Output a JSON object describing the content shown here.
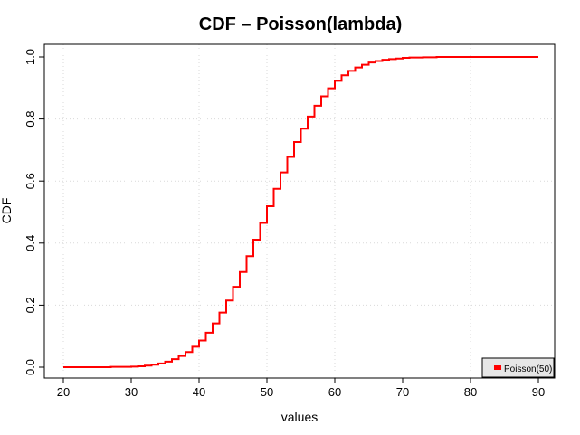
{
  "chart_data": {
    "type": "line",
    "step": true,
    "title": "CDF – Poisson(lambda)",
    "xlabel": "values",
    "ylabel": "CDF",
    "xlim": [
      20,
      90
    ],
    "ylim": [
      0,
      1
    ],
    "x_ticks": [
      20,
      30,
      40,
      50,
      60,
      70,
      80,
      90
    ],
    "x_tick_labels": [
      "20",
      "30",
      "40",
      "50",
      "60",
      "70",
      "80",
      "90"
    ],
    "y_ticks": [
      0,
      0.2,
      0.4,
      0.6,
      0.8,
      1
    ],
    "y_tick_labels": [
      "0.0",
      "0.2",
      "0.4",
      "0.6",
      "0.8",
      "1.0"
    ],
    "grid": true,
    "legend_position": "bottom-right",
    "series": [
      {
        "name": "Poisson(50)",
        "color": "#ff0000",
        "x": [
          20,
          21,
          22,
          23,
          24,
          25,
          26,
          27,
          28,
          29,
          30,
          31,
          32,
          33,
          34,
          35,
          36,
          37,
          38,
          39,
          40,
          41,
          42,
          43,
          44,
          45,
          46,
          47,
          48,
          49,
          50,
          51,
          52,
          53,
          54,
          55,
          56,
          57,
          58,
          59,
          60,
          61,
          62,
          63,
          64,
          65,
          66,
          67,
          68,
          69,
          70,
          71,
          72,
          73,
          74,
          75,
          76,
          77,
          78,
          79,
          80,
          81,
          82,
          83,
          84,
          85,
          86,
          87,
          88,
          89,
          90
        ],
        "y": [
          0,
          0,
          0,
          0,
          0,
          0,
          0,
          0.001,
          0.001,
          0.001,
          0.002,
          0.003,
          0.005,
          0.008,
          0.012,
          0.018,
          0.026,
          0.036,
          0.049,
          0.066,
          0.086,
          0.111,
          0.141,
          0.176,
          0.215,
          0.259,
          0.307,
          0.358,
          0.411,
          0.465,
          0.519,
          0.575,
          0.628,
          0.678,
          0.726,
          0.769,
          0.808,
          0.843,
          0.873,
          0.899,
          0.923,
          0.941,
          0.955,
          0.966,
          0.975,
          0.982,
          0.987,
          0.991,
          0.993,
          0.995,
          0.997,
          0.998,
          0.998,
          0.999,
          0.999,
          1,
          1,
          1,
          1,
          1,
          1,
          1,
          1,
          1,
          1,
          1,
          1,
          1,
          1,
          1,
          1
        ]
      }
    ]
  }
}
